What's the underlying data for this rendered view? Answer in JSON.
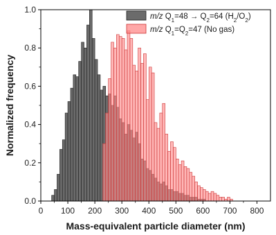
{
  "chart_data": {
    "type": "bar",
    "xlabel": "Mass-equivalent particle diameter (nm)",
    "ylabel": "Normalized frequency",
    "xlim": [
      0,
      850
    ],
    "ylim": [
      0,
      1.0
    ],
    "x_ticks": [
      "0",
      "100",
      "200",
      "300",
      "400",
      "500",
      "600",
      "700",
      "800"
    ],
    "y_ticks": [
      "0.0",
      "0.2",
      "0.4",
      "0.6",
      "0.8",
      "1.0"
    ],
    "bin_width_nm": 10,
    "legend_position": "top-right",
    "legend": [
      {
        "series": 0,
        "prefix": "m/z",
        "text_html": "Q<tspan baseline-shift=\"sub\" font-size=\"8\">1</tspan>=48 → Q<tspan baseline-shift=\"sub\" font-size=\"8\">2</tspan>=64 (H<tspan baseline-shift=\"sub\" font-size=\"8\">2</tspan>/O<tspan baseline-shift=\"sub\" font-size=\"8\">2</tspan>)"
      },
      {
        "series": 1,
        "prefix": "m/z",
        "text_html": "Q<tspan baseline-shift=\"sub\" font-size=\"8\">1</tspan>=Q<tspan baseline-shift=\"sub\" font-size=\"8\">2</tspan>=47 (No gas)"
      }
    ],
    "series": [
      {
        "name": "m/z Q1=48 → Q2=64 (H2/O2)",
        "color": "#6b6b6b",
        "edge": "#1e1e1e",
        "bin_starts": [
          40,
          50,
          60,
          70,
          80,
          90,
          100,
          110,
          120,
          130,
          140,
          150,
          160,
          170,
          180,
          190,
          200,
          210,
          220,
          230,
          240,
          250,
          260,
          270,
          280,
          290,
          300,
          310,
          320,
          330,
          340,
          350,
          360,
          370,
          380,
          390,
          400,
          410,
          420,
          430,
          440,
          450,
          460,
          470,
          480,
          490,
          500,
          510,
          520,
          530,
          540,
          550,
          560,
          570,
          580,
          590,
          600
        ],
        "values": [
          0.03,
          0.06,
          0.14,
          0.27,
          0.32,
          0.46,
          0.52,
          0.59,
          0.66,
          0.65,
          0.73,
          0.83,
          0.8,
          0.92,
          1.0,
          0.85,
          0.74,
          0.66,
          0.58,
          0.6,
          0.55,
          0.56,
          0.5,
          0.55,
          0.49,
          0.43,
          0.41,
          0.35,
          0.4,
          0.37,
          0.33,
          0.36,
          0.3,
          0.22,
          0.21,
          0.17,
          0.16,
          0.14,
          0.12,
          0.1,
          0.09,
          0.1,
          0.08,
          0.06,
          0.06,
          0.05,
          0.05,
          0.04,
          0.04,
          0.03,
          0.03,
          0.02,
          0.02,
          0.02,
          0.01,
          0.01,
          0.01
        ]
      },
      {
        "name": "m/z Q1=Q2=47 (No gas)",
        "color": "#ff8a8a",
        "edge": "#cc3333",
        "bin_starts": [
          230,
          240,
          250,
          260,
          270,
          280,
          290,
          300,
          310,
          320,
          330,
          340,
          350,
          360,
          370,
          380,
          390,
          400,
          410,
          420,
          430,
          440,
          450,
          460,
          470,
          480,
          490,
          500,
          510,
          520,
          530,
          540,
          550,
          560,
          570,
          580,
          590,
          600,
          610,
          620,
          630,
          640,
          650,
          660,
          670,
          680,
          690,
          700
        ],
        "values": [
          0.3,
          0.46,
          0.64,
          0.83,
          0.8,
          0.87,
          0.86,
          0.85,
          0.79,
          0.89,
          0.85,
          0.71,
          0.68,
          0.8,
          0.72,
          0.77,
          0.53,
          0.7,
          0.67,
          0.41,
          0.38,
          0.46,
          0.51,
          0.35,
          0.26,
          0.31,
          0.28,
          0.22,
          0.19,
          0.21,
          0.18,
          0.17,
          0.15,
          0.13,
          0.1,
          0.08,
          0.07,
          0.06,
          0.05,
          0.04,
          0.05,
          0.04,
          0.03,
          0.02,
          0.02,
          0.01,
          0.02,
          0.01
        ]
      }
    ]
  }
}
